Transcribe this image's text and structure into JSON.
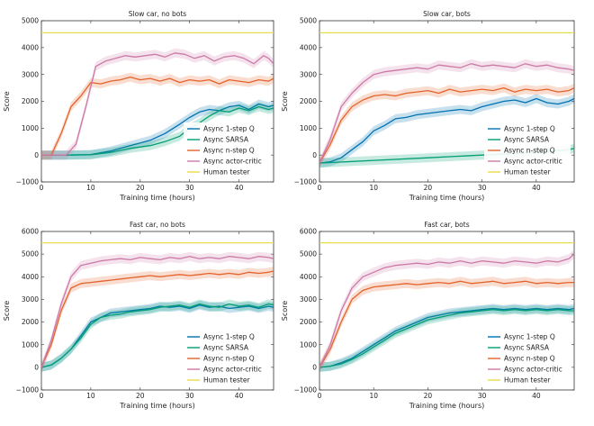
{
  "figure": {
    "legend_labels": [
      "Async 1-step Q",
      "Async SARSA",
      "Async n-step Q",
      "Async actor-critic",
      "Human tester"
    ]
  },
  "chart_data": [
    {
      "type": "line",
      "title": "Slow car, no bots",
      "xlabel": "Training time (hours)",
      "ylabel": "Score",
      "xlim": [
        0,
        47
      ],
      "ylim": [
        -1000,
        5000
      ],
      "xticks": [
        0,
        10,
        20,
        30,
        40
      ],
      "yticks": [
        -1000,
        0,
        1000,
        2000,
        3000,
        4000,
        5000
      ],
      "legend_position": "lower-right",
      "series": [
        {
          "name": "Async 1-step Q",
          "color": "#0072b2",
          "x": [
            0,
            5,
            10,
            14,
            18,
            22,
            25,
            28,
            30,
            32,
            34,
            36,
            38,
            40,
            42,
            44,
            46,
            47
          ],
          "y": [
            0,
            0,
            20,
            150,
            350,
            550,
            800,
            1150,
            1400,
            1600,
            1700,
            1650,
            1800,
            1850,
            1700,
            1900,
            1800,
            1850
          ]
        },
        {
          "name": "Async SARSA",
          "color": "#009e73",
          "x": [
            0,
            5,
            10,
            14,
            18,
            22,
            25,
            28,
            30,
            32,
            34,
            36,
            38,
            40,
            42,
            44,
            46,
            47
          ],
          "y": [
            0,
            0,
            10,
            100,
            250,
            350,
            500,
            700,
            1000,
            1200,
            1450,
            1650,
            1600,
            1750,
            1650,
            1800,
            1700,
            1750
          ]
        },
        {
          "name": "Async n-step Q",
          "color": "#e4632b",
          "x": [
            0,
            2,
            4,
            6,
            8,
            10,
            12,
            14,
            16,
            18,
            20,
            22,
            24,
            26,
            28,
            30,
            32,
            34,
            36,
            38,
            40,
            42,
            44,
            46,
            47
          ],
          "y": [
            0,
            0,
            800,
            1800,
            2200,
            2700,
            2650,
            2750,
            2800,
            2900,
            2800,
            2850,
            2750,
            2850,
            2700,
            2800,
            2750,
            2800,
            2650,
            2800,
            2750,
            2700,
            2800,
            2750,
            2850
          ]
        },
        {
          "name": "Async actor-critic",
          "color": "#cc79a7",
          "x": [
            0,
            5,
            7,
            9,
            11,
            13,
            15,
            17,
            19,
            21,
            23,
            25,
            27,
            29,
            31,
            33,
            35,
            37,
            39,
            41,
            43,
            45,
            46,
            47
          ],
          "y": [
            0,
            0,
            400,
            1800,
            3300,
            3500,
            3600,
            3700,
            3650,
            3700,
            3750,
            3650,
            3800,
            3750,
            3600,
            3700,
            3500,
            3650,
            3700,
            3600,
            3400,
            3700,
            3600,
            3400
          ]
        },
        {
          "name": "Human tester",
          "color": "#e8dc4a",
          "x": [
            0,
            47
          ],
          "y": [
            4550,
            4550
          ]
        }
      ]
    },
    {
      "type": "line",
      "title": "Slow car, bots",
      "xlabel": "Training time (hours)",
      "ylabel": "Score",
      "xlim": [
        0,
        47
      ],
      "ylim": [
        -1000,
        5000
      ],
      "xticks": [
        0,
        10,
        20,
        30,
        40
      ],
      "yticks": [
        -1000,
        0,
        1000,
        2000,
        3000,
        4000,
        5000
      ],
      "legend_position": "lower-right",
      "series": [
        {
          "name": "Async 1-step Q",
          "color": "#0072b2",
          "x": [
            0,
            2,
            4,
            6,
            8,
            10,
            12,
            14,
            16,
            18,
            20,
            22,
            24,
            26,
            28,
            30,
            32,
            34,
            36,
            38,
            40,
            42,
            44,
            46,
            47
          ],
          "y": [
            -300,
            -250,
            -100,
            200,
            500,
            900,
            1100,
            1350,
            1400,
            1500,
            1550,
            1600,
            1650,
            1700,
            1650,
            1800,
            1900,
            2000,
            2050,
            1950,
            2100,
            1950,
            1900,
            2000,
            2100
          ]
        },
        {
          "name": "Async SARSA",
          "color": "#009e73",
          "x": [
            0,
            10,
            20,
            30,
            40,
            46,
            47
          ],
          "y": [
            -300,
            -200,
            -100,
            0,
            100,
            200,
            250
          ]
        },
        {
          "name": "Async n-step Q",
          "color": "#e4632b",
          "x": [
            0,
            2,
            4,
            6,
            8,
            10,
            12,
            14,
            16,
            18,
            20,
            22,
            24,
            26,
            28,
            30,
            32,
            34,
            36,
            38,
            40,
            42,
            44,
            46,
            47
          ],
          "y": [
            -300,
            400,
            1300,
            1800,
            2050,
            2200,
            2250,
            2200,
            2300,
            2350,
            2400,
            2300,
            2450,
            2350,
            2400,
            2450,
            2400,
            2500,
            2350,
            2450,
            2400,
            2450,
            2350,
            2400,
            2500
          ]
        },
        {
          "name": "Async actor-critic",
          "color": "#cc79a7",
          "x": [
            0,
            2,
            4,
            6,
            8,
            10,
            12,
            14,
            16,
            18,
            20,
            22,
            24,
            26,
            28,
            30,
            32,
            34,
            36,
            38,
            40,
            42,
            44,
            46,
            47
          ],
          "y": [
            -300,
            600,
            1800,
            2300,
            2700,
            3000,
            3100,
            3150,
            3200,
            3250,
            3200,
            3350,
            3300,
            3250,
            3400,
            3300,
            3350,
            3300,
            3250,
            3400,
            3300,
            3350,
            3250,
            3200,
            3150
          ]
        },
        {
          "name": "Human tester",
          "color": "#e8dc4a",
          "x": [
            0,
            47
          ],
          "y": [
            4550,
            4550
          ]
        }
      ]
    },
    {
      "type": "line",
      "title": "Fast car, no bots",
      "xlabel": "Training time (hours)",
      "ylabel": "Score",
      "xlim": [
        0,
        47
      ],
      "ylim": [
        -1000,
        6000
      ],
      "xticks": [
        0,
        10,
        20,
        30,
        40
      ],
      "yticks": [
        -1000,
        0,
        1000,
        2000,
        3000,
        4000,
        5000,
        6000
      ],
      "legend_position": "lower-right",
      "series": [
        {
          "name": "Async 1-step Q",
          "color": "#0072b2",
          "x": [
            0,
            2,
            4,
            6,
            8,
            10,
            12,
            14,
            16,
            18,
            20,
            22,
            24,
            26,
            28,
            30,
            32,
            34,
            36,
            38,
            40,
            42,
            44,
            46,
            47
          ],
          "y": [
            0,
            100,
            400,
            800,
            1400,
            2000,
            2200,
            2400,
            2450,
            2500,
            2550,
            2600,
            2700,
            2650,
            2700,
            2600,
            2750,
            2650,
            2700,
            2600,
            2650,
            2700,
            2600,
            2700,
            2650
          ]
        },
        {
          "name": "Async SARSA",
          "color": "#009e73",
          "x": [
            0,
            2,
            4,
            6,
            8,
            10,
            12,
            14,
            16,
            18,
            20,
            22,
            24,
            26,
            28,
            30,
            32,
            34,
            36,
            38,
            40,
            42,
            44,
            46,
            47
          ],
          "y": [
            0,
            100,
            400,
            800,
            1300,
            1900,
            2200,
            2300,
            2350,
            2450,
            2500,
            2550,
            2650,
            2700,
            2750,
            2650,
            2800,
            2700,
            2650,
            2800,
            2700,
            2750,
            2650,
            2800,
            2750
          ]
        },
        {
          "name": "Async n-step Q",
          "color": "#e4632b",
          "x": [
            0,
            2,
            4,
            6,
            8,
            10,
            12,
            14,
            16,
            18,
            20,
            22,
            24,
            26,
            28,
            30,
            32,
            34,
            36,
            38,
            40,
            42,
            44,
            46,
            47
          ],
          "y": [
            0,
            1000,
            2500,
            3500,
            3700,
            3750,
            3800,
            3850,
            3900,
            3950,
            4000,
            4050,
            4000,
            4050,
            4100,
            4050,
            4100,
            4150,
            4100,
            4150,
            4100,
            4200,
            4150,
            4200,
            4250
          ]
        },
        {
          "name": "Async actor-critic",
          "color": "#cc79a7",
          "x": [
            0,
            2,
            4,
            6,
            8,
            10,
            12,
            14,
            16,
            18,
            20,
            22,
            24,
            26,
            28,
            30,
            32,
            34,
            36,
            38,
            40,
            42,
            44,
            46,
            47
          ],
          "y": [
            0,
            1200,
            2800,
            4000,
            4500,
            4600,
            4700,
            4750,
            4800,
            4750,
            4850,
            4800,
            4750,
            4850,
            4800,
            4900,
            4800,
            4850,
            4800,
            4900,
            4850,
            4800,
            4900,
            4850,
            4800
          ]
        },
        {
          "name": "Human tester",
          "color": "#e8dc4a",
          "x": [
            0,
            47
          ],
          "y": [
            5500,
            5500
          ]
        }
      ]
    },
    {
      "type": "line",
      "title": "Fast car, bots",
      "xlabel": "Training time (hours)",
      "ylabel": "Score",
      "xlim": [
        0,
        47
      ],
      "ylim": [
        -1000,
        6000
      ],
      "xticks": [
        0,
        10,
        20,
        30,
        40
      ],
      "yticks": [
        -1000,
        0,
        1000,
        2000,
        3000,
        4000,
        5000,
        6000
      ],
      "legend_position": "lower-right",
      "series": [
        {
          "name": "Async 1-step Q",
          "color": "#0072b2",
          "x": [
            0,
            2,
            4,
            6,
            8,
            10,
            12,
            14,
            16,
            18,
            20,
            22,
            24,
            26,
            28,
            30,
            32,
            34,
            36,
            38,
            40,
            42,
            44,
            46,
            47
          ],
          "y": [
            0,
            50,
            200,
            400,
            700,
            1000,
            1300,
            1600,
            1800,
            2000,
            2200,
            2300,
            2400,
            2450,
            2500,
            2550,
            2600,
            2550,
            2600,
            2550,
            2600,
            2550,
            2600,
            2550,
            2600
          ]
        },
        {
          "name": "Async SARSA",
          "color": "#009e73",
          "x": [
            0,
            2,
            4,
            6,
            8,
            10,
            12,
            14,
            16,
            18,
            20,
            22,
            24,
            26,
            28,
            30,
            32,
            34,
            36,
            38,
            40,
            42,
            44,
            46,
            47
          ],
          "y": [
            0,
            50,
            150,
            350,
            600,
            900,
            1200,
            1500,
            1700,
            1900,
            2100,
            2200,
            2300,
            2400,
            2450,
            2500,
            2550,
            2500,
            2550,
            2500,
            2550,
            2500,
            2550,
            2500,
            2500
          ]
        },
        {
          "name": "Async n-step Q",
          "color": "#e4632b",
          "x": [
            0,
            2,
            4,
            6,
            8,
            10,
            12,
            14,
            16,
            18,
            20,
            22,
            24,
            26,
            28,
            30,
            32,
            34,
            36,
            38,
            40,
            42,
            44,
            46,
            47
          ],
          "y": [
            0,
            800,
            2000,
            3000,
            3400,
            3550,
            3600,
            3650,
            3700,
            3650,
            3700,
            3750,
            3700,
            3800,
            3700,
            3750,
            3800,
            3700,
            3750,
            3800,
            3700,
            3750,
            3700,
            3750,
            3750
          ]
        },
        {
          "name": "Async actor-critic",
          "color": "#cc79a7",
          "x": [
            0,
            2,
            4,
            6,
            8,
            10,
            12,
            14,
            16,
            18,
            20,
            22,
            24,
            26,
            28,
            30,
            32,
            34,
            36,
            38,
            40,
            42,
            44,
            46,
            47
          ],
          "y": [
            0,
            1000,
            2500,
            3500,
            4000,
            4200,
            4400,
            4500,
            4550,
            4600,
            4550,
            4650,
            4600,
            4700,
            4600,
            4700,
            4650,
            4600,
            4700,
            4650,
            4600,
            4700,
            4650,
            4800,
            5000
          ]
        },
        {
          "name": "Human tester",
          "color": "#e8dc4a",
          "x": [
            0,
            47
          ],
          "y": [
            5500,
            5500
          ]
        }
      ]
    }
  ]
}
